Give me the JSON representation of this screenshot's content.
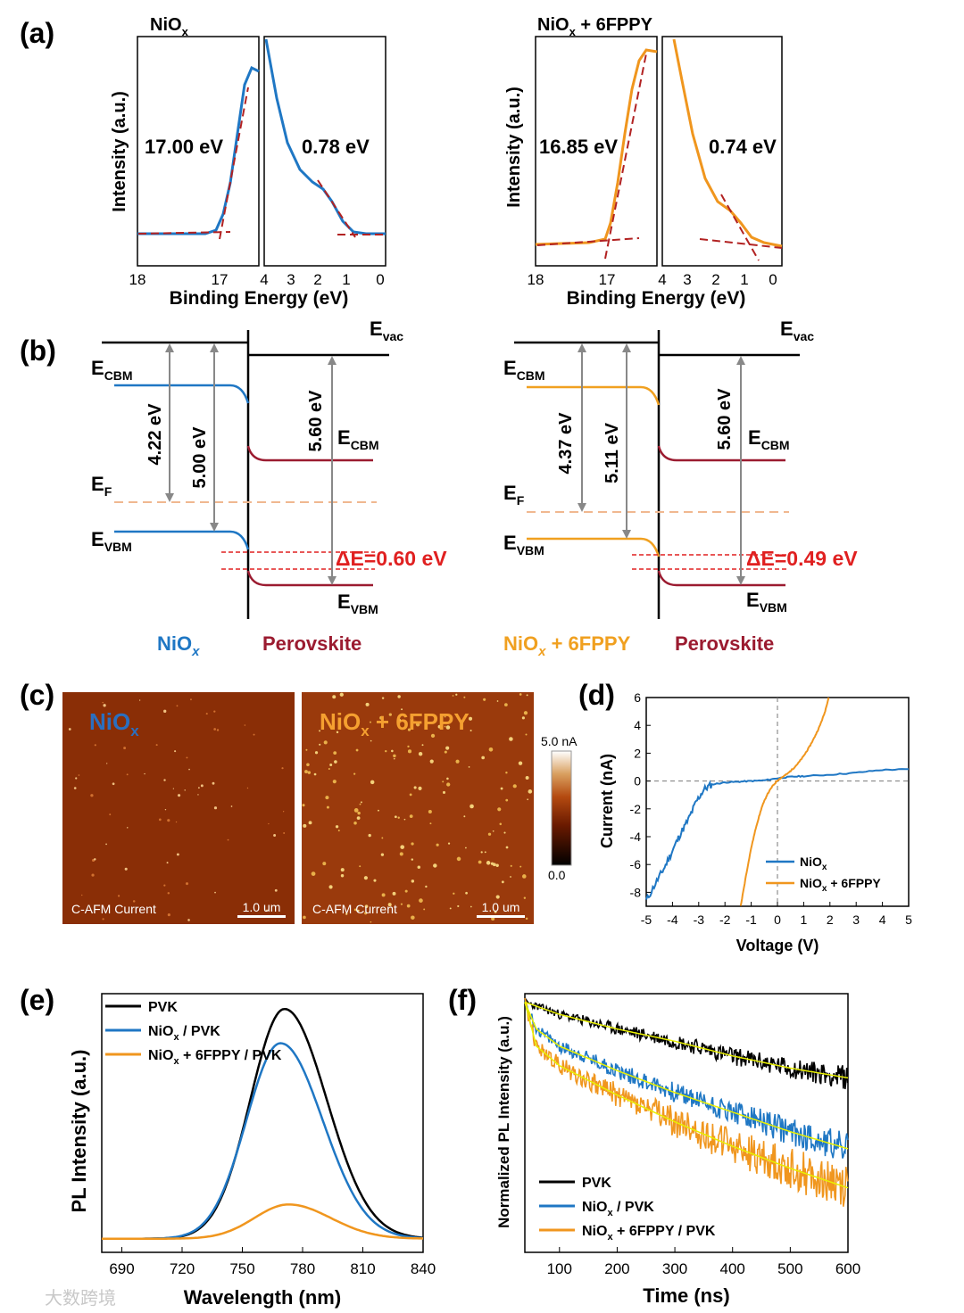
{
  "figure": {
    "panel_labels": [
      "(a)",
      "(b)",
      "(c)",
      "(d)",
      "(e)",
      "(f)"
    ],
    "watermark": "大数跨境"
  },
  "panel_a": {
    "left": {
      "title_main": "NiO",
      "title_sub": "x",
      "title_rest": "",
      "ylabel": "Intensity (a.u.)",
      "xlabel": "Binding Energy (eV)",
      "cutoff_label": "17.00 eV",
      "onset_label": "0.78 eV",
      "cutoff_ticks": [
        "18",
        "17"
      ],
      "onset_ticks": [
        "4",
        "3",
        "2",
        "1",
        "0"
      ]
    },
    "right": {
      "title_main": "NiO",
      "title_sub": "x",
      "title_rest": " + 6FPPY",
      "ylabel": "Intensity (a.u.)",
      "xlabel": "Binding Energy (eV)",
      "cutoff_label": "16.85 eV",
      "onset_label": "0.74 eV",
      "cutoff_ticks": [
        "18",
        "17"
      ],
      "onset_ticks": [
        "4",
        "3",
        "2",
        "1",
        "0"
      ]
    }
  },
  "panel_b": {
    "left": {
      "evac": "E",
      "evac_sub": "vac",
      "ecbm": "E",
      "ecbm_sub": "CBM",
      "ef": "E",
      "ef_sub": "F",
      "evbm": "E",
      "evbm_sub": "VBM",
      "gap1": "4.22 eV",
      "gap2": "5.00 eV",
      "gap3": "5.60 eV",
      "delta": "ΔE=0.60 eV",
      "htl_main": "NiO",
      "htl_sub": "x",
      "htl_rest": "",
      "pvk": "Perovskite"
    },
    "right": {
      "evac": "E",
      "evac_sub": "vac",
      "ecbm": "E",
      "ecbm_sub": "CBM",
      "ef": "E",
      "ef_sub": "F",
      "evbm": "E",
      "evbm_sub": "VBM",
      "gap1": "4.37 eV",
      "gap2": "5.11 eV",
      "gap3": "5.60 eV",
      "delta": "ΔE=0.49 eV",
      "htl_main": "NiO",
      "htl_sub": "x",
      "htl_rest": " + 6FPPY",
      "pvk": "Perovskite"
    }
  },
  "panel_c": {
    "left_title_main": "NiO",
    "left_title_sub": "x",
    "left_title_rest": "",
    "right_title_main": "NiO",
    "right_title_sub": "x",
    "right_title_rest": " + 6FPPY",
    "caption": "C-AFM Current",
    "scalebar": "1.0 um",
    "colorbar_max": "5.0 nA",
    "colorbar_min": "0.0"
  },
  "colors": {
    "niox": "#1f77c4",
    "sixfppy": "#f0961e",
    "pvk": "#000000",
    "perovskite": "#9b1b30",
    "delta": "#e02020",
    "fit_red": "#b22222",
    "fit_yellow": "#e8f000"
  },
  "chart_data": [
    {
      "id": "d",
      "type": "line",
      "xlabel": "Voltage (V)",
      "ylabel": "Current (nA)",
      "xlim": [
        -5,
        5
      ],
      "ylim": [
        -9,
        6
      ],
      "xticks": [
        -5,
        -4,
        -3,
        -2,
        -1,
        0,
        1,
        2,
        3,
        4,
        5
      ],
      "yticks": [
        -8,
        -6,
        -4,
        -2,
        0,
        2,
        4,
        6
      ],
      "legend": "bottom-right",
      "series": [
        {
          "name_main": "NiO",
          "name_sub": "x",
          "name_rest": "",
          "x": [
            -5.0,
            -4.6,
            -4.3,
            -4.0,
            -3.7,
            -3.4,
            -3.1,
            -2.8,
            -2.5,
            -2.0,
            -1.5,
            -1.0,
            -0.5,
            0.0,
            0.5,
            1.0,
            2.0,
            3.0,
            4.0,
            5.0
          ],
          "y": [
            -8.6,
            -7.2,
            -6.2,
            -5.0,
            -3.8,
            -2.8,
            -1.5,
            -0.6,
            -0.25,
            -0.1,
            -0.05,
            0.0,
            0.05,
            0.2,
            0.3,
            0.35,
            0.45,
            0.6,
            0.8,
            0.85
          ]
        },
        {
          "name_main": "NiO",
          "name_sub": "x",
          "name_rest": " + 6FPPY",
          "x": [
            -1.4,
            -1.2,
            -1.0,
            -0.8,
            -0.6,
            -0.4,
            -0.2,
            0.0,
            0.2,
            0.4,
            0.6,
            0.8,
            1.0,
            1.2,
            1.4,
            1.6,
            1.8,
            1.95
          ],
          "y": [
            -9.0,
            -6.8,
            -4.8,
            -3.2,
            -1.9,
            -1.0,
            -0.4,
            0.05,
            0.3,
            0.55,
            0.9,
            1.3,
            1.8,
            2.4,
            3.1,
            3.9,
            4.9,
            6.0
          ]
        }
      ]
    },
    {
      "id": "e",
      "type": "line",
      "xlabel": "Wavelength (nm)",
      "ylabel": "PL Intensity (a.u.)",
      "xlim": [
        680,
        840
      ],
      "ylim": [
        0,
        1
      ],
      "xticks": [
        690,
        720,
        750,
        780,
        810,
        840
      ],
      "legend": "top-left",
      "series": [
        {
          "name_main": "PVK",
          "name_sub": "",
          "name_rest": "",
          "peak_x": 771,
          "peak_y": 0.94
        },
        {
          "name_main": "NiO",
          "name_sub": "x",
          "name_rest": " / PVK",
          "peak_x": 769,
          "peak_y": 0.8
        },
        {
          "name_main": "NiO",
          "name_sub": "x",
          "name_rest": " + 6FPPY / PVK",
          "peak_x": 773,
          "peak_y": 0.14
        }
      ]
    },
    {
      "id": "f",
      "type": "line",
      "xlabel": "Time (ns)",
      "ylabel": "Normalized PL Intensity (a.u.)",
      "xlim": [
        40,
        600
      ],
      "ylim": [
        0,
        1
      ],
      "xticks": [
        100,
        200,
        300,
        400,
        500,
        600
      ],
      "legend": "bottom-left",
      "series": [
        {
          "name_main": "PVK",
          "name_sub": "",
          "name_rest": "",
          "x": [
            40,
            100,
            200,
            300,
            400,
            500,
            600
          ],
          "y": [
            0.98,
            0.93,
            0.87,
            0.82,
            0.76,
            0.71,
            0.67
          ]
        },
        {
          "name_main": "NiO",
          "name_sub": "x",
          "name_rest": " / PVK",
          "x": [
            40,
            60,
            100,
            200,
            300,
            400,
            500,
            600
          ],
          "y": [
            0.98,
            0.87,
            0.8,
            0.7,
            0.61,
            0.53,
            0.45,
            0.38
          ]
        },
        {
          "name_main": "NiO",
          "name_sub": "x",
          "name_rest": " + 6FPPY / PVK",
          "x": [
            40,
            60,
            100,
            200,
            300,
            400,
            500,
            600
          ],
          "y": [
            0.98,
            0.8,
            0.72,
            0.6,
            0.49,
            0.39,
            0.3,
            0.22
          ]
        }
      ]
    }
  ]
}
